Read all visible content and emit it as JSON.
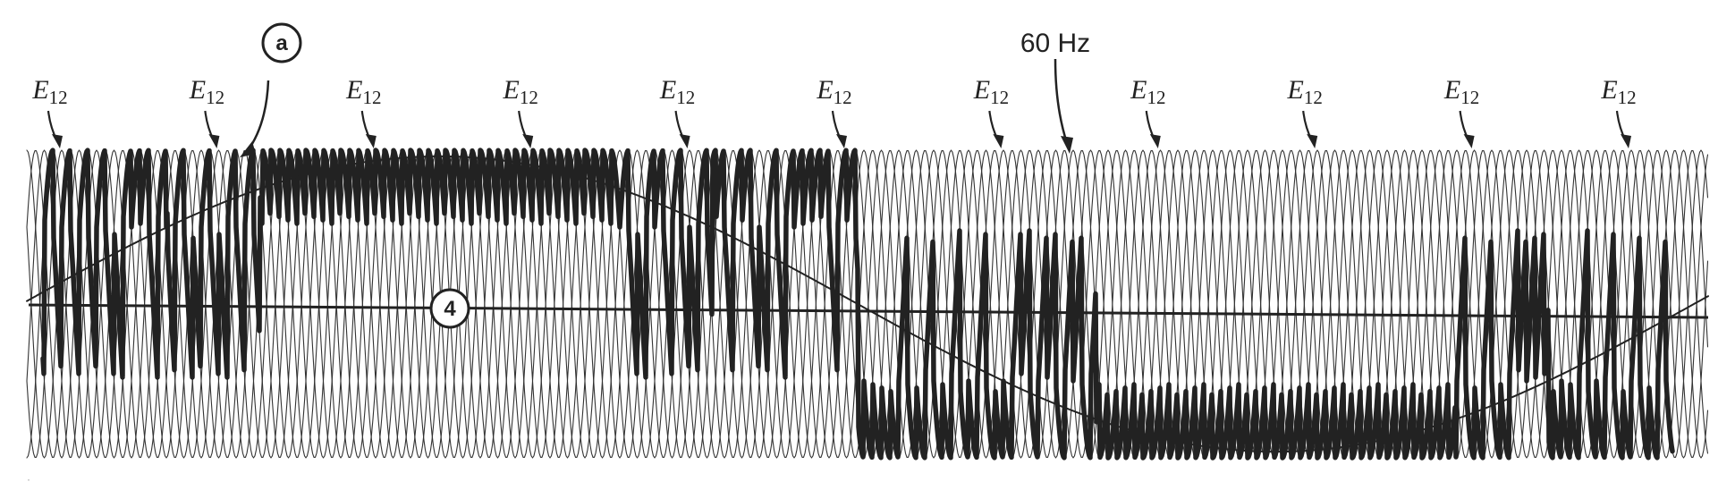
{
  "figure": {
    "frequency_label": "60 Hz",
    "marker_a": "a",
    "marker_4": "4",
    "pulse_label_main": "E",
    "pulse_label_sub": "12",
    "pulse_label_count": 11,
    "colors": {
      "ink": "#222222",
      "thin_ink": "#333333",
      "background": "#ffffff"
    }
  }
}
